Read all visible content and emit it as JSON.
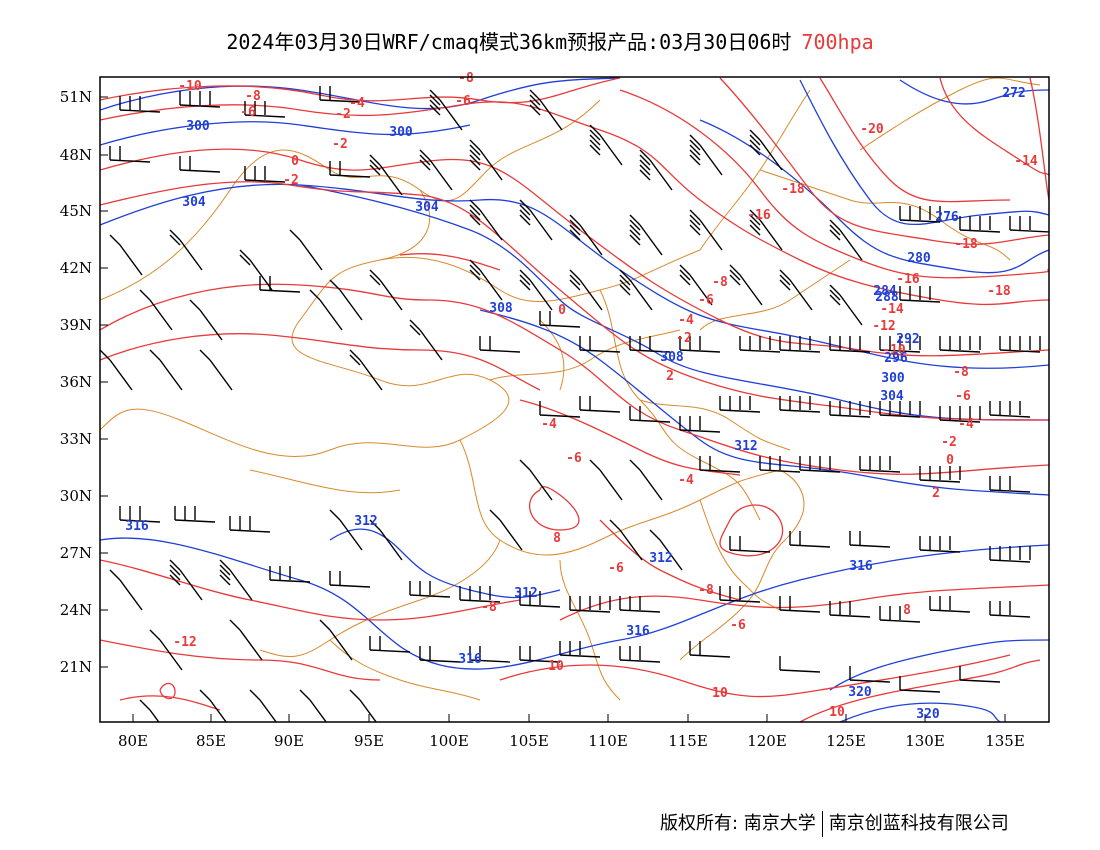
{
  "header": {
    "title": "2024年03月30日WRF/cmaq模式36km预报产品:03月30日06时",
    "level": "700hpa"
  },
  "footer": {
    "owner": "版权所有: 南京大学",
    "partner": "南京创蓝科技有限公司"
  },
  "map_view": {
    "lon_range": [
      78,
      138
    ],
    "lat_range": [
      17,
      52
    ],
    "x_ticks": [
      "80E",
      "85E",
      "90E",
      "95E",
      "100E",
      "105E",
      "110E",
      "115E",
      "120E",
      "125E",
      "130E",
      "135E"
    ],
    "y_ticks": [
      "51N",
      "48N",
      "45N",
      "42N",
      "39N",
      "36N",
      "33N",
      "30N",
      "27N",
      "24N",
      "21N"
    ]
  },
  "colors": {
    "temperature": "#e83a3a",
    "height": "#1f3fd8",
    "boundary": "#d98a2c",
    "wind": "#000000"
  },
  "temperature_labels": [
    "-10",
    "-8",
    "-6",
    "-4",
    "-2",
    "-2",
    "0",
    "-2",
    "-8",
    "-6",
    "-20",
    "-18",
    "-16",
    "-18",
    "-14",
    "-16",
    "-18",
    "-14",
    "-12",
    "-10",
    "-8",
    "-6",
    "-4",
    "-2",
    "0",
    "2",
    "-8",
    "-6",
    "-4",
    "-2",
    "0",
    "2",
    "-4",
    "-6",
    "-4",
    "-6",
    "-8",
    "-8",
    "-6",
    "8",
    "8",
    "-12",
    "10",
    "10",
    "10"
  ],
  "height_labels": [
    "300",
    "300",
    "304",
    "304",
    "308",
    "308",
    "304",
    "300",
    "296",
    "292",
    "288",
    "284",
    "280",
    "276",
    "272",
    "312",
    "312",
    "312",
    "312",
    "316",
    "316",
    "316",
    "316",
    "320",
    "320"
  ],
  "icons": [
    "wind-barb",
    "contour-line",
    "boundary-line"
  ]
}
